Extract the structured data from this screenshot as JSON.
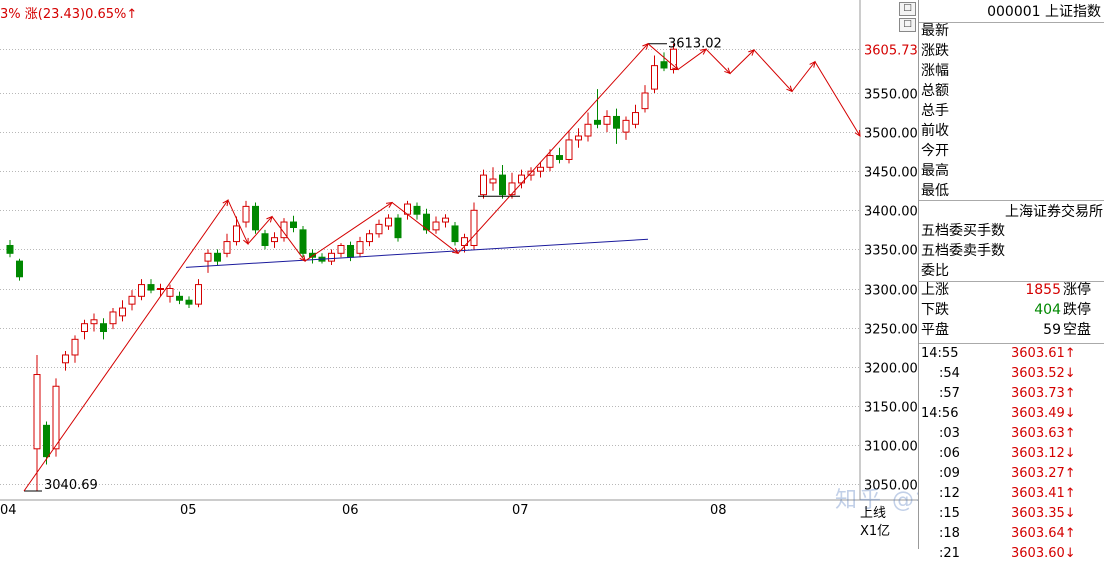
{
  "header": {
    "change_text": "3% 涨(23.43)0.65%↑",
    "corner_btn_1": "□",
    "corner_btn_2": "□"
  },
  "colors": {
    "up": "#d40000",
    "down": "#008800",
    "trend_arrow": "#d40000",
    "support_line": "#1a1a9c"
  },
  "chart_data": {
    "type": "candlestick",
    "y_ticks": [
      "3605.73",
      "3550.00",
      "3500.00",
      "3450.00",
      "3400.00",
      "3350.00",
      "3300.00",
      "3250.00",
      "3200.00",
      "3150.00",
      "3100.00",
      "3050.00"
    ],
    "ylim": [
      3000,
      3640
    ],
    "x_ticks": [
      "04",
      "05",
      "06",
      "07",
      "08"
    ],
    "annotations": [
      "3613.02",
      "3040.69"
    ],
    "last_price_label": "3605.73",
    "candles": [
      {
        "o": 3355,
        "c": 3345,
        "h": 3362,
        "l": 3340
      },
      {
        "o": 3335,
        "c": 3315,
        "h": 3338,
        "l": 3310
      },
      {
        "o": 3095,
        "c": 3190,
        "h": 3215,
        "l": 3041
      },
      {
        "o": 3125,
        "c": 3085,
        "h": 3130,
        "l": 3075
      },
      {
        "o": 3095,
        "c": 3175,
        "h": 3185,
        "l": 3085
      },
      {
        "o": 3205,
        "c": 3215,
        "h": 3220,
        "l": 3195
      },
      {
        "o": 3215,
        "c": 3235,
        "h": 3240,
        "l": 3205
      },
      {
        "o": 3245,
        "c": 3255,
        "h": 3260,
        "l": 3235
      },
      {
        "o": 3255,
        "c": 3260,
        "h": 3268,
        "l": 3245
      },
      {
        "o": 3255,
        "c": 3245,
        "h": 3262,
        "l": 3235
      },
      {
        "o": 3255,
        "c": 3270,
        "h": 3275,
        "l": 3248
      },
      {
        "o": 3265,
        "c": 3275,
        "h": 3285,
        "l": 3258
      },
      {
        "o": 3280,
        "c": 3290,
        "h": 3298,
        "l": 3272
      },
      {
        "o": 3290,
        "c": 3305,
        "h": 3312,
        "l": 3285
      },
      {
        "o": 3305,
        "c": 3298,
        "h": 3312,
        "l": 3294
      },
      {
        "o": 3300,
        "c": 3300,
        "h": 3306,
        "l": 3290
      },
      {
        "o": 3290,
        "c": 3300,
        "h": 3305,
        "l": 3282
      },
      {
        "o": 3290,
        "c": 3285,
        "h": 3296,
        "l": 3280
      },
      {
        "o": 3285,
        "c": 3280,
        "h": 3290,
        "l": 3275
      },
      {
        "o": 3280,
        "c": 3305,
        "h": 3312,
        "l": 3276
      },
      {
        "o": 3335,
        "c": 3345,
        "h": 3350,
        "l": 3320
      },
      {
        "o": 3345,
        "c": 3335,
        "h": 3350,
        "l": 3330
      },
      {
        "o": 3345,
        "c": 3360,
        "h": 3370,
        "l": 3340
      },
      {
        "o": 3360,
        "c": 3380,
        "h": 3392,
        "l": 3355
      },
      {
        "o": 3385,
        "c": 3405,
        "h": 3412,
        "l": 3378
      },
      {
        "o": 3405,
        "c": 3375,
        "h": 3410,
        "l": 3370
      },
      {
        "o": 3370,
        "c": 3355,
        "h": 3375,
        "l": 3350
      },
      {
        "o": 3360,
        "c": 3365,
        "h": 3372,
        "l": 3352
      },
      {
        "o": 3365,
        "c": 3385,
        "h": 3390,
        "l": 3360
      },
      {
        "o": 3385,
        "c": 3378,
        "h": 3393,
        "l": 3372
      },
      {
        "o": 3375,
        "c": 3345,
        "h": 3380,
        "l": 3340
      },
      {
        "o": 3345,
        "c": 3340,
        "h": 3350,
        "l": 3332
      },
      {
        "o": 3340,
        "c": 3335,
        "h": 3345,
        "l": 3332
      },
      {
        "o": 3335,
        "c": 3345,
        "h": 3350,
        "l": 3330
      },
      {
        "o": 3345,
        "c": 3355,
        "h": 3358,
        "l": 3340
      },
      {
        "o": 3355,
        "c": 3340,
        "h": 3360,
        "l": 3335
      },
      {
        "o": 3345,
        "c": 3360,
        "h": 3366,
        "l": 3340
      },
      {
        "o": 3360,
        "c": 3370,
        "h": 3375,
        "l": 3354
      },
      {
        "o": 3370,
        "c": 3382,
        "h": 3388,
        "l": 3365
      },
      {
        "o": 3380,
        "c": 3390,
        "h": 3395,
        "l": 3375
      },
      {
        "o": 3390,
        "c": 3365,
        "h": 3395,
        "l": 3360
      },
      {
        "o": 3395,
        "c": 3408,
        "h": 3412,
        "l": 3388
      },
      {
        "o": 3405,
        "c": 3395,
        "h": 3410,
        "l": 3388
      },
      {
        "o": 3395,
        "c": 3375,
        "h": 3402,
        "l": 3370
      },
      {
        "o": 3375,
        "c": 3385,
        "h": 3392,
        "l": 3370
      },
      {
        "o": 3385,
        "c": 3390,
        "h": 3395,
        "l": 3378
      },
      {
        "o": 3380,
        "c": 3360,
        "h": 3385,
        "l": 3355
      },
      {
        "o": 3355,
        "c": 3365,
        "h": 3370,
        "l": 3346
      },
      {
        "o": 3355,
        "c": 3400,
        "h": 3410,
        "l": 3350
      },
      {
        "o": 3420,
        "c": 3445,
        "h": 3452,
        "l": 3415
      },
      {
        "o": 3435,
        "c": 3440,
        "h": 3455,
        "l": 3425
      },
      {
        "o": 3445,
        "c": 3420,
        "h": 3458,
        "l": 3415
      },
      {
        "o": 3420,
        "c": 3435,
        "h": 3448,
        "l": 3415
      },
      {
        "o": 3435,
        "c": 3445,
        "h": 3452,
        "l": 3428
      },
      {
        "o": 3445,
        "c": 3450,
        "h": 3455,
        "l": 3438
      },
      {
        "o": 3450,
        "c": 3455,
        "h": 3462,
        "l": 3442
      },
      {
        "o": 3455,
        "c": 3470,
        "h": 3478,
        "l": 3450
      },
      {
        "o": 3470,
        "c": 3465,
        "h": 3480,
        "l": 3460
      },
      {
        "o": 3465,
        "c": 3490,
        "h": 3502,
        "l": 3460
      },
      {
        "o": 3490,
        "c": 3495,
        "h": 3505,
        "l": 3480
      },
      {
        "o": 3495,
        "c": 3510,
        "h": 3525,
        "l": 3488
      },
      {
        "o": 3515,
        "c": 3510,
        "h": 3555,
        "l": 3505
      },
      {
        "o": 3510,
        "c": 3520,
        "h": 3528,
        "l": 3500
      },
      {
        "o": 3520,
        "c": 3505,
        "h": 3530,
        "l": 3485
      },
      {
        "o": 3500,
        "c": 3515,
        "h": 3520,
        "l": 3490
      },
      {
        "o": 3510,
        "c": 3525,
        "h": 3535,
        "l": 3505
      },
      {
        "o": 3530,
        "c": 3550,
        "h": 3560,
        "l": 3525
      },
      {
        "o": 3555,
        "c": 3585,
        "h": 3598,
        "l": 3550
      },
      {
        "o": 3590,
        "c": 3582,
        "h": 3602,
        "l": 3578
      },
      {
        "o": 3580,
        "c": 3606,
        "h": 3613,
        "l": 3575
      }
    ],
    "support_line": [
      [
        3330,
        3363
      ]
    ],
    "trend_points": [
      3041,
      3413,
      3335,
      3345,
      3370,
      3410,
      3350,
      3613,
      3580,
      3605,
      3580,
      3606,
      3555,
      3590,
      3495
    ]
  },
  "xaxis": {
    "labels": [
      "04",
      "05",
      "06",
      "07",
      "08"
    ]
  },
  "indicator": {
    "line1": "上线",
    "line2": "X1亿"
  },
  "watermark": "知乎 @银河启帆",
  "sidebar": {
    "code_title": "000001 上证指数",
    "quote_labels": [
      "最新",
      "涨跌",
      "涨幅",
      "总额",
      "总手",
      "前收",
      "今开",
      "最高",
      "最低"
    ],
    "exchange": "上海证券交易所",
    "order_labels": [
      "五档委买手数",
      "五档委卖手数",
      "委比"
    ],
    "breadth": [
      {
        "label": "上涨",
        "value": "1855",
        "suffix": "涨停"
      },
      {
        "label": "下跌",
        "value": "404",
        "suffix": "跌停"
      },
      {
        "label": "平盘",
        "value": "59",
        "suffix": "空盘"
      }
    ],
    "ticks": [
      {
        "time": "14:55",
        "price": "3603.61↑",
        "dir": "up"
      },
      {
        "time": ":54",
        "price": "3603.52↓",
        "dir": "down"
      },
      {
        "time": ":57",
        "price": "3603.73↑",
        "dir": "up"
      },
      {
        "time": "14:56",
        "price": "3603.49↓",
        "dir": "down"
      },
      {
        "time": ":03",
        "price": "3603.63↑",
        "dir": "up"
      },
      {
        "time": ":06",
        "price": "3603.12↓",
        "dir": "down"
      },
      {
        "time": ":09",
        "price": "3603.27↑",
        "dir": "up"
      },
      {
        "time": ":12",
        "price": "3603.41↑",
        "dir": "up"
      },
      {
        "time": ":15",
        "price": "3603.35↓",
        "dir": "down"
      },
      {
        "time": ":18",
        "price": "3603.64↑",
        "dir": "up"
      },
      {
        "time": ":21",
        "price": "3603.60↓",
        "dir": "down"
      }
    ]
  }
}
